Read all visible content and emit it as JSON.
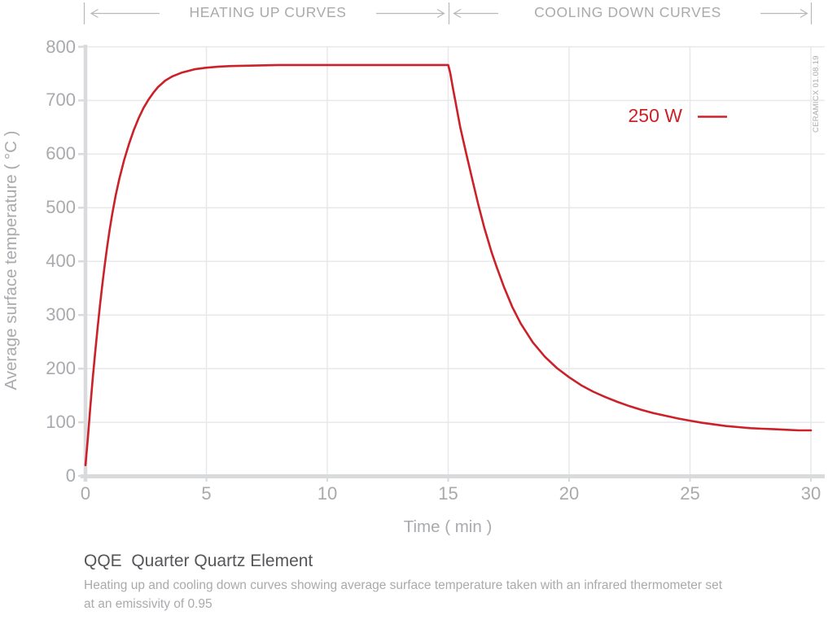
{
  "watermark": "CERAMICX 01.08.19",
  "footer": {
    "title": "QQE  Quarter Quartz Element",
    "subtitle_lines": [
      "Heating up and cooling down curves showing average surface temperature taken with an infrared thermometer set",
      "at an emissivity of 0.95"
    ]
  },
  "colors": {
    "accent_red": "#cb2129",
    "text_gray": "#a8aaad",
    "title_gray": "#545659",
    "axis_gray": "#d9dadc",
    "grid_gray": "#e7e8e9",
    "marks_gray": "#b6b8ba"
  },
  "chart_data": {
    "type": "line",
    "title": "",
    "xlabel": "Time ( min )",
    "ylabel": "Average surface temperature ( °C )",
    "xlim": [
      0,
      30
    ],
    "ylim": [
      0,
      800
    ],
    "x_ticks": [
      0,
      5,
      10,
      15,
      20,
      25,
      30
    ],
    "y_ticks": [
      0,
      100,
      200,
      300,
      400,
      500,
      600,
      700,
      800
    ],
    "grid": true,
    "legend_position": "top-right",
    "sections": [
      {
        "label": "HEATING UP CURVES",
        "x_range": [
          0,
          15
        ]
      },
      {
        "label": "COOLING DOWN CURVES",
        "x_range": [
          15,
          30
        ]
      }
    ],
    "series": [
      {
        "name": "250 W",
        "color": "#cb2129",
        "points": [
          [
            0,
            20
          ],
          [
            0.1,
            72
          ],
          [
            0.2,
            128
          ],
          [
            0.3,
            182
          ],
          [
            0.4,
            230
          ],
          [
            0.5,
            275
          ],
          [
            0.6,
            318
          ],
          [
            0.7,
            358
          ],
          [
            0.8,
            395
          ],
          [
            0.9,
            428
          ],
          [
            1,
            459
          ],
          [
            1.1,
            487
          ],
          [
            1.25,
            523
          ],
          [
            1.4,
            554
          ],
          [
            1.6,
            589
          ],
          [
            1.8,
            619
          ],
          [
            2,
            645
          ],
          [
            2.2,
            667
          ],
          [
            2.4,
            686
          ],
          [
            2.6,
            701
          ],
          [
            2.8,
            714
          ],
          [
            3,
            725
          ],
          [
            3.3,
            737
          ],
          [
            3.6,
            745
          ],
          [
            4,
            752
          ],
          [
            4.5,
            758
          ],
          [
            5,
            761
          ],
          [
            5.5,
            763
          ],
          [
            6,
            764
          ],
          [
            7,
            765
          ],
          [
            8,
            766
          ],
          [
            10,
            766
          ],
          [
            12,
            766
          ],
          [
            15,
            766
          ],
          [
            15.08,
            752
          ],
          [
            15.2,
            722
          ],
          [
            15.3,
            698
          ],
          [
            15.5,
            650
          ],
          [
            15.75,
            600
          ],
          [
            16,
            552
          ],
          [
            16.25,
            505
          ],
          [
            16.5,
            462
          ],
          [
            16.8,
            416
          ],
          [
            17,
            390
          ],
          [
            17.3,
            353
          ],
          [
            17.65,
            315
          ],
          [
            18,
            284
          ],
          [
            18.5,
            249
          ],
          [
            19,
            222
          ],
          [
            19.5,
            201
          ],
          [
            20,
            184
          ],
          [
            20.5,
            169
          ],
          [
            21,
            157
          ],
          [
            21.5,
            147
          ],
          [
            22,
            138
          ],
          [
            22.5,
            130
          ],
          [
            23,
            123
          ],
          [
            23.5,
            117
          ],
          [
            24,
            112
          ],
          [
            24.5,
            107
          ],
          [
            25,
            103
          ],
          [
            25.5,
            99
          ],
          [
            26,
            96
          ],
          [
            26.5,
            93
          ],
          [
            27,
            91
          ],
          [
            27.5,
            89
          ],
          [
            28,
            88
          ],
          [
            28.5,
            87
          ],
          [
            29,
            86
          ],
          [
            29.5,
            85
          ],
          [
            30,
            85
          ]
        ]
      }
    ]
  }
}
